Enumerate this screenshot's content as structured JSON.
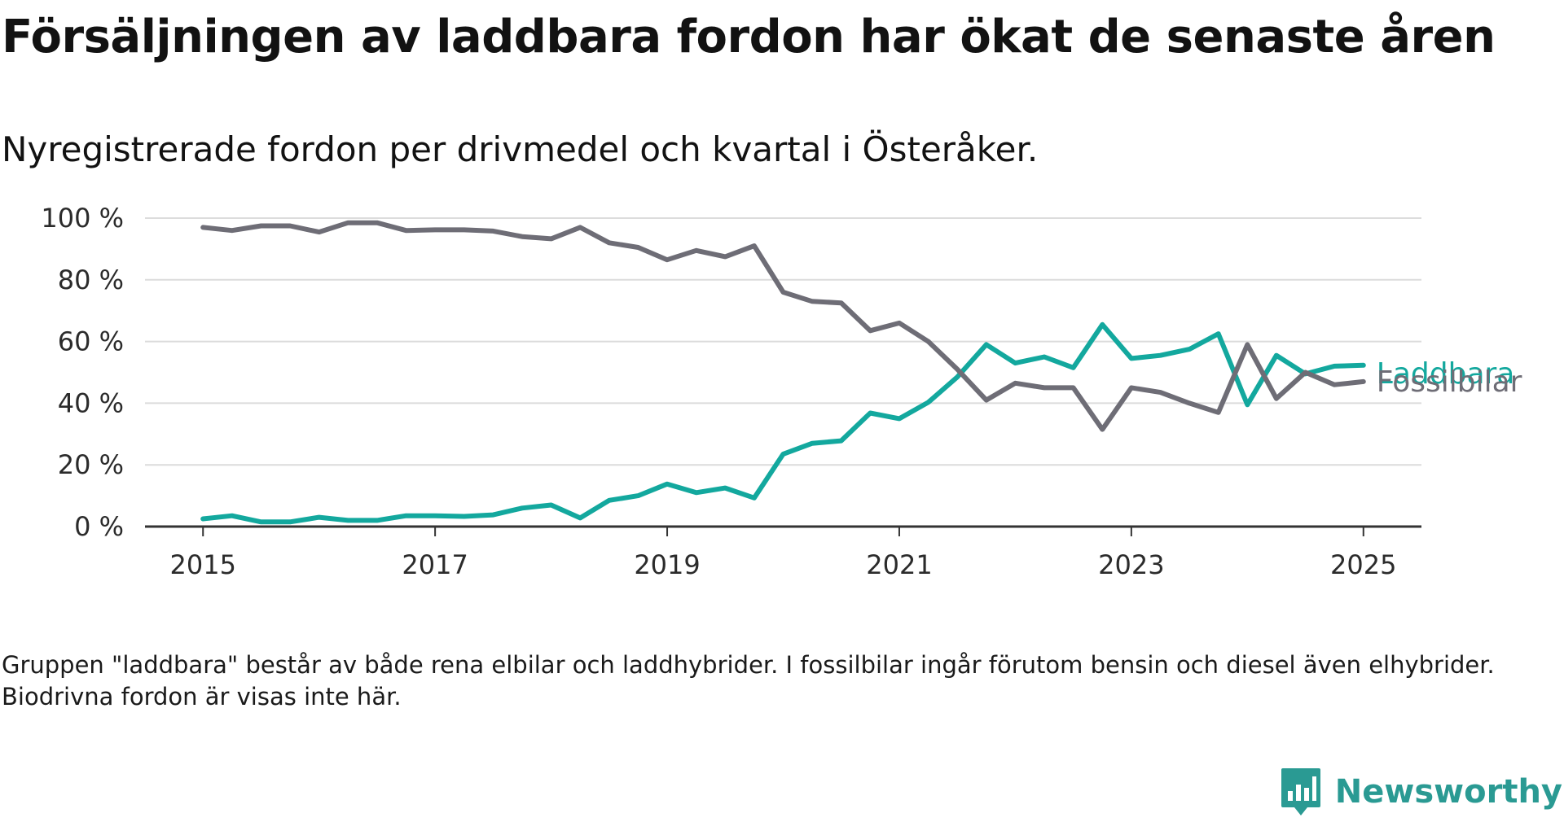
{
  "title": "Försäljningen av laddbara fordon har ökat de senaste åren",
  "subtitle": "Nyregistrerade fordon per drivmedel och kvartal i Österåker.",
  "footnote": "Gruppen \"laddbara\" består av både rena elbilar och laddhybrider. I fossilbilar ingår förutom bensin och diesel även elhybrider. Biodrivna fordon är visas inte här.",
  "brand": {
    "name": "Newsworthy",
    "logo_icon": "newsworthy-logo-icon"
  },
  "colors": {
    "fossil": "#6e6d76",
    "laddbara": "#13a89e",
    "grid": "#dcdcdc",
    "axis": "#333333",
    "brand": "#2a9a93"
  },
  "chart_data": {
    "type": "line",
    "x_start": 2015.0,
    "x_step": 0.25,
    "xlim": [
      2014.5,
      2025.5
    ],
    "ylim": [
      0,
      100
    ],
    "x_ticks": [
      2015,
      2017,
      2019,
      2021,
      2023,
      2025
    ],
    "x_tick_labels": [
      "2015",
      "2017",
      "2019",
      "2021",
      "2023",
      "2025"
    ],
    "y_ticks": [
      0,
      20,
      40,
      60,
      80,
      100
    ],
    "y_tick_labels": [
      "0 %",
      "20 %",
      "40 %",
      "60 %",
      "80 %",
      "100 %"
    ],
    "grid": "horizontal",
    "series": [
      {
        "name": "Fossilbilar",
        "color": "#6e6d76",
        "values": [
          97,
          96,
          97.5,
          97.5,
          95.5,
          98.5,
          98.5,
          96,
          96.2,
          96.2,
          95.8,
          94,
          93.3,
          97,
          92,
          90.5,
          86.5,
          89.5,
          87.5,
          91,
          76,
          73,
          72.5,
          63.5,
          66,
          60,
          51,
          41,
          46.5,
          45,
          45,
          31.5,
          45,
          43.5,
          40,
          37,
          59,
          41.5,
          50,
          46,
          47
        ]
      },
      {
        "name": "Laddbara",
        "color": "#13a89e",
        "values": [
          2.5,
          3.5,
          1.5,
          1.5,
          3,
          2,
          2,
          3.5,
          3.5,
          3.3,
          3.8,
          6,
          7,
          2.8,
          8.5,
          10,
          13.8,
          11,
          12.5,
          9.3,
          23.5,
          27,
          27.8,
          36.8,
          35,
          40.3,
          48.5,
          59,
          53,
          55,
          51.5,
          65.5,
          54.5,
          55.5,
          57.5,
          62.5,
          39.5,
          55.5,
          49.5,
          52,
          52.3
        ]
      }
    ]
  }
}
